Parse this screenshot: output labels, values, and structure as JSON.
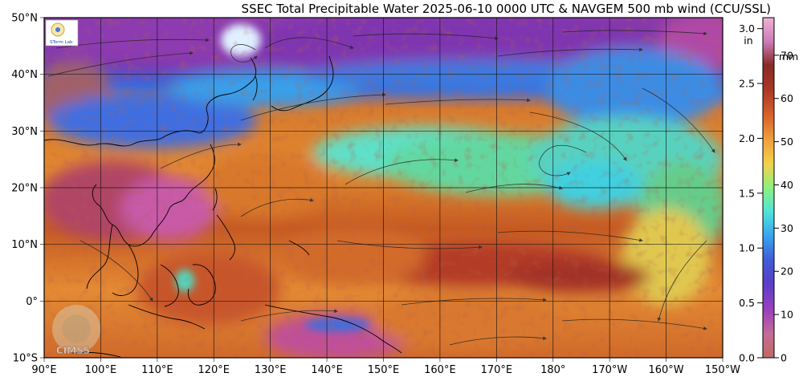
{
  "title": "SSEC Total Precipitable Water  2025-06-10 0000 UTC & NAVGEM 500 mb wind (CCU/SSL)",
  "map": {
    "lat_labels": [
      "50°N",
      "40°N",
      "30°N",
      "20°N",
      "10°N",
      "0°",
      "10°S"
    ],
    "lon_labels": [
      "90°E",
      "100°E",
      "110°E",
      "120°E",
      "130°E",
      "140°E",
      "150°E",
      "160°E",
      "170°E",
      "180°",
      "170°W",
      "160°W",
      "150°W"
    ],
    "lat_range": [
      -10,
      50
    ],
    "lon_range": [
      90,
      210
    ]
  },
  "colorbar": {
    "inch_unit": "in",
    "mm_unit": "mm",
    "inch_ticks": [
      "3.0",
      "2.5",
      "2.0",
      "1.5",
      "1.0",
      "0.5",
      "0.0"
    ],
    "mm_ticks": [
      "70",
      "60",
      "50",
      "40",
      "30",
      "20",
      "10",
      "0"
    ],
    "palette": [
      "#c06a62",
      "#ce6fc4",
      "#9a40bd",
      "#5a3ec8",
      "#3f5fd8",
      "#38a6f0",
      "#4fe4d8",
      "#8ef07c",
      "#f2d24b",
      "#f0a03c",
      "#d9642a",
      "#a83626",
      "#8a2a26",
      "#cc7cb8",
      "#f0b2d6"
    ]
  },
  "logos": {
    "top_left": "STorm Lab",
    "bottom_left": "CIMSS"
  }
}
